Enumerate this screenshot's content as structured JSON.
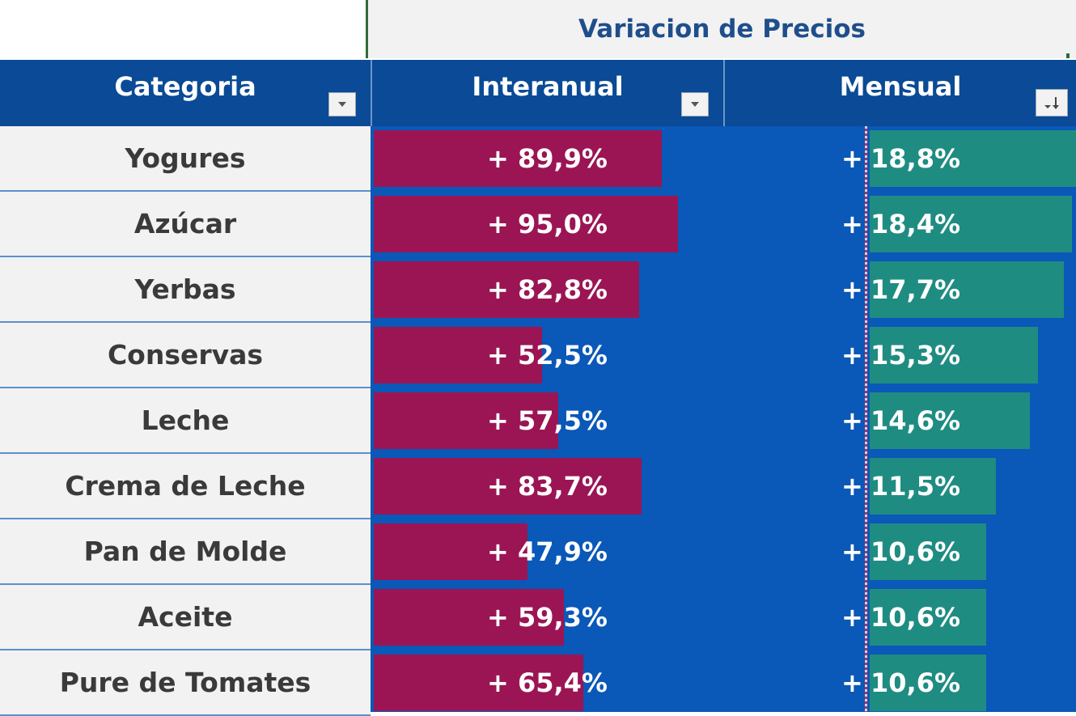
{
  "title": "Variacion de Precios",
  "headers": {
    "categoria": "Categoria",
    "interanual": "Interanual",
    "mensual": "Mensual"
  },
  "icons": {
    "filter": "dropdown-arrow-icon",
    "sort": "sort-descending-icon"
  },
  "colors": {
    "header": "#0a4a96",
    "area": "#0a58b8",
    "interanual_bar": "#9b1554",
    "mensual_bar": "#1f8c82",
    "title_text": "#1f4e8c"
  },
  "rows": [
    {
      "categoria": "Yogures",
      "interanual": "+ 89,9%",
      "interanual_value": 89.9,
      "mensual_sign": "+",
      "mensual": "18,8%",
      "mensual_value": 18.8
    },
    {
      "categoria": "Azúcar",
      "interanual": "+ 95,0%",
      "interanual_value": 95.0,
      "mensual_sign": "+",
      "mensual": "18,4%",
      "mensual_value": 18.4
    },
    {
      "categoria": "Yerbas",
      "interanual": "+ 82,8%",
      "interanual_value": 82.8,
      "mensual_sign": "+",
      "mensual": "17,7%",
      "mensual_value": 17.7
    },
    {
      "categoria": "Conservas",
      "interanual": "+ 52,5%",
      "interanual_value": 52.5,
      "mensual_sign": "+",
      "mensual": "15,3%",
      "mensual_value": 15.3
    },
    {
      "categoria": "Leche",
      "interanual": "+ 57,5%",
      "interanual_value": 57.5,
      "mensual_sign": "+",
      "mensual": "14,6%",
      "mensual_value": 14.6
    },
    {
      "categoria": "Crema de Leche",
      "interanual": "+ 83,7%",
      "interanual_value": 83.7,
      "mensual_sign": "+",
      "mensual": "11,5%",
      "mensual_value": 11.5
    },
    {
      "categoria": "Pan de Molde",
      "interanual": "+ 47,9%",
      "interanual_value": 47.9,
      "mensual_sign": "+",
      "mensual": "10,6%",
      "mensual_value": 10.6
    },
    {
      "categoria": "Aceite",
      "interanual": "+ 59,3%",
      "interanual_value": 59.3,
      "mensual_sign": "+",
      "mensual": "10,6%",
      "mensual_value": 10.6
    },
    {
      "categoria": "Pure de Tomates",
      "interanual": "+ 65,4%",
      "interanual_value": 65.4,
      "mensual_sign": "+",
      "mensual": "10,6%",
      "mensual_value": 10.6
    }
  ]
}
